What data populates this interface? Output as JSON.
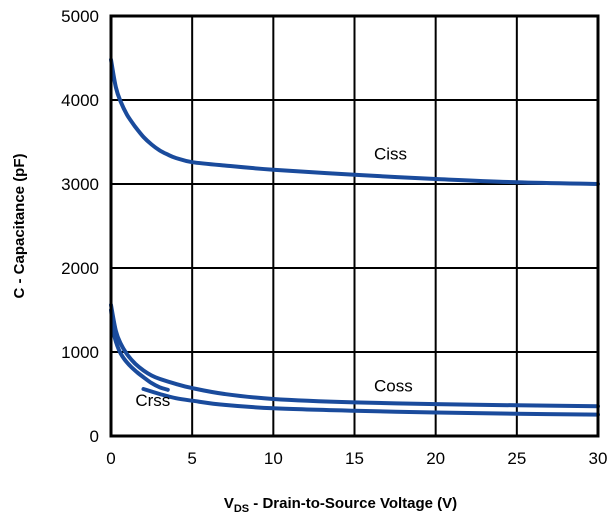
{
  "chart_data": {
    "type": "line",
    "title": "",
    "xlabel_main": "V",
    "xlabel_sub": "DS",
    "xlabel_rest": " - Drain-to-Source Voltage (V)",
    "ylabel": "C - Capacitance (pF)",
    "xlim": [
      0,
      30
    ],
    "ylim": [
      0,
      5000
    ],
    "grid": true,
    "line_color": "#1a4b9c",
    "x_ticks": [
      "0",
      "5",
      "10",
      "15",
      "20",
      "25",
      "30"
    ],
    "y_ticks": [
      "0",
      "1000",
      "2000",
      "3000",
      "4000",
      "5000"
    ],
    "series": [
      {
        "name": "Ciss",
        "x": [
          0,
          0.3,
          0.6,
          1,
          1.5,
          2,
          2.5,
          3,
          3.5,
          4,
          5,
          7,
          10,
          15,
          20,
          25,
          30
        ],
        "values": [
          4480,
          4150,
          3980,
          3820,
          3680,
          3560,
          3470,
          3400,
          3350,
          3310,
          3260,
          3220,
          3170,
          3110,
          3060,
          3020,
          3000
        ]
      },
      {
        "name": "Coss",
        "x": [
          0,
          0.3,
          0.6,
          1,
          1.5,
          2,
          2.5,
          3,
          4,
          5,
          7,
          10,
          15,
          20,
          25,
          30
        ],
        "values": [
          1560,
          1250,
          1100,
          970,
          860,
          780,
          720,
          680,
          620,
          570,
          500,
          440,
          400,
          380,
          365,
          355
        ]
      },
      {
        "name": "Crss",
        "x": [
          0,
          0.2,
          0.5,
          0.8,
          1.2,
          1.6,
          2,
          2.5,
          3,
          3.5
        ],
        "values": [
          1500,
          1200,
          1020,
          920,
          830,
          760,
          700,
          630,
          580,
          550
        ]
      },
      {
        "name": "",
        "x": [
          2,
          3,
          4,
          5,
          7,
          10,
          15,
          20,
          25,
          30
        ],
        "values": [
          560,
          500,
          450,
          420,
          370,
          330,
          300,
          280,
          265,
          255
        ]
      }
    ],
    "labels": [
      {
        "text": "Ciss",
        "x": 16.2,
        "y": 3290
      },
      {
        "text": "Coss",
        "x": 16.2,
        "y": 530
      },
      {
        "text": "Crss",
        "x": 1.5,
        "y": 360
      }
    ]
  }
}
